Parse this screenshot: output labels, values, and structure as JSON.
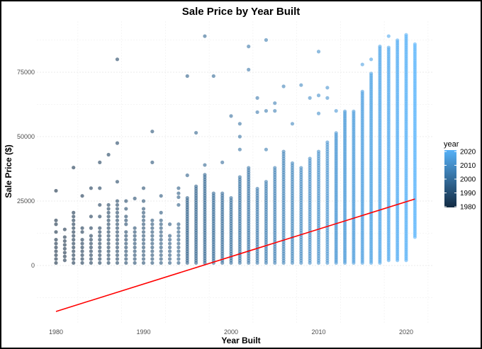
{
  "chart_data": {
    "type": "scatter",
    "title": "Sale Price by Year Built",
    "xlabel": "Year Built",
    "ylabel": "Sale Price ($)",
    "xlim": [
      1978.5,
      2023
    ],
    "ylim": [
      -22500,
      94000
    ],
    "x_ticks": [
      1980,
      1990,
      2000,
      2010,
      2020
    ],
    "y_ticks": [
      0,
      25000,
      50000,
      75000
    ],
    "grid": true,
    "legend": {
      "title": "year",
      "position": "right",
      "type": "colorbar",
      "ticks": [
        2020,
        2010,
        2000,
        1990,
        1980
      ],
      "color_low": "#132B43",
      "color_high": "#56B1F7"
    },
    "point_groups": [
      {
        "year": 1980,
        "range": [
          1000,
          18000
        ],
        "outliers": [
          29000
        ]
      },
      {
        "year": 1981,
        "range": [
          2000,
          15000
        ],
        "outliers": []
      },
      {
        "year": 1982,
        "range": [
          1000,
          28000
        ],
        "outliers": [
          38000
        ]
      },
      {
        "year": 1983,
        "range": [
          1000,
          16000
        ],
        "outliers": [
          27000
        ]
      },
      {
        "year": 1984,
        "range": [
          1000,
          20000
        ],
        "outliers": [
          30000
        ]
      },
      {
        "year": 1985,
        "range": [
          1000,
          25000
        ],
        "outliers": [
          30000,
          40000
        ]
      },
      {
        "year": 1986,
        "range": [
          1000,
          30000
        ],
        "outliers": [
          43000
        ]
      },
      {
        "year": 1987,
        "range": [
          1000,
          33000
        ],
        "outliers": [
          47500,
          80000
        ]
      },
      {
        "year": 1988,
        "range": [
          1000,
          22000
        ],
        "outliers": [
          25000
        ]
      },
      {
        "year": 1989,
        "range": [
          1000,
          15000
        ],
        "outliers": [
          26000
        ]
      },
      {
        "year": 1990,
        "range": [
          1000,
          25000
        ],
        "outliers": [
          30000
        ]
      },
      {
        "year": 1991,
        "range": [
          1000,
          18000
        ],
        "outliers": [
          40000,
          52000
        ]
      },
      {
        "year": 1992,
        "range": [
          1000,
          22000
        ],
        "outliers": [
          27000
        ]
      },
      {
        "year": 1993,
        "range": [
          1000,
          20000
        ],
        "outliers": []
      },
      {
        "year": 1994,
        "range": [
          1000,
          28000
        ],
        "outliers": [
          30000
        ]
      },
      {
        "year": 1995,
        "range": [
          1000,
          27000
        ],
        "outliers": [
          35000,
          73500
        ]
      },
      {
        "year": 1996,
        "range": [
          1000,
          31000
        ],
        "outliers": [
          51500
        ]
      },
      {
        "year": 1997,
        "range": [
          1000,
          36000
        ],
        "outliers": [
          39000,
          89000
        ]
      },
      {
        "year": 1998,
        "range": [
          1000,
          28000
        ],
        "outliers": [
          73500
        ]
      },
      {
        "year": 1999,
        "range": [
          1000,
          28000
        ],
        "outliers": [
          40000
        ]
      },
      {
        "year": 2000,
        "range": [
          1000,
          27000
        ],
        "outliers": [
          58000
        ]
      },
      {
        "year": 2001,
        "range": [
          1000,
          35000
        ],
        "outliers": [
          45000,
          50000,
          55000
        ]
      },
      {
        "year": 2002,
        "range": [
          1000,
          38000
        ],
        "outliers": [
          76000,
          85000
        ]
      },
      {
        "year": 2003,
        "range": [
          1000,
          30000
        ],
        "outliers": [
          59500,
          65000
        ]
      },
      {
        "year": 2004,
        "range": [
          1000,
          33000
        ],
        "outliers": [
          45000,
          60000,
          87500
        ]
      },
      {
        "year": 2005,
        "range": [
          1000,
          38000
        ],
        "outliers": [
          60000,
          63000
        ]
      },
      {
        "year": 2006,
        "range": [
          1000,
          45000
        ],
        "outliers": [
          69500
        ]
      },
      {
        "year": 2007,
        "range": [
          1000,
          40000
        ],
        "outliers": [
          55000
        ]
      },
      {
        "year": 2008,
        "range": [
          1000,
          38000
        ],
        "outliers": [
          70000
        ]
      },
      {
        "year": 2009,
        "range": [
          1000,
          42000
        ],
        "outliers": [
          65000
        ]
      },
      {
        "year": 2010,
        "range": [
          1000,
          45000
        ],
        "outliers": [
          59000,
          66000,
          83000
        ]
      },
      {
        "year": 2011,
        "range": [
          1000,
          48000
        ],
        "outliers": [
          65000,
          69000
        ]
      },
      {
        "year": 2012,
        "range": [
          1000,
          52000
        ],
        "outliers": [
          60000
        ]
      },
      {
        "year": 2013,
        "range": [
          1000,
          60000
        ],
        "outliers": []
      },
      {
        "year": 2014,
        "range": [
          1000,
          60000
        ],
        "outliers": []
      },
      {
        "year": 2015,
        "range": [
          1000,
          68000
        ],
        "outliers": [
          78000
        ]
      },
      {
        "year": 2016,
        "range": [
          1000,
          75000
        ],
        "outliers": [
          80000
        ]
      },
      {
        "year": 2017,
        "range": [
          1000,
          85000
        ],
        "outliers": []
      },
      {
        "year": 2018,
        "range": [
          2000,
          85000
        ],
        "outliers": [
          89000
        ]
      },
      {
        "year": 2019,
        "range": [
          2000,
          88000
        ],
        "outliers": []
      },
      {
        "year": 2020,
        "range": [
          2000,
          90000
        ],
        "outliers": []
      },
      {
        "year": 2021,
        "range": [
          11000,
          86000
        ],
        "outliers": []
      }
    ],
    "trend_line": {
      "color": "#FF0000",
      "x": [
        1980,
        2021
      ],
      "y": [
        -17850,
        25800
      ]
    }
  }
}
